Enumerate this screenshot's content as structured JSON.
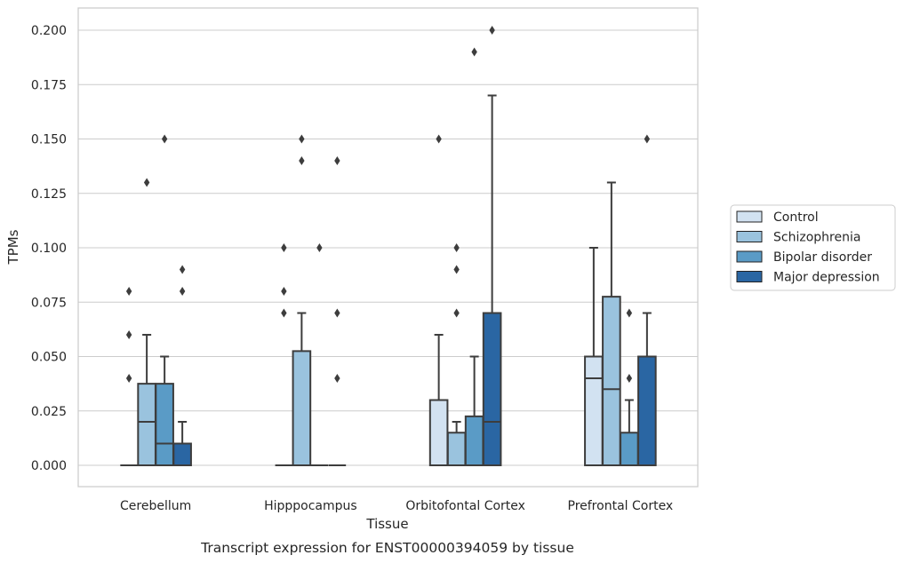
{
  "chart_data": {
    "type": "box",
    "title": "",
    "caption": "Transcript expression for ENST00000394059 by tissue",
    "xlabel": "Tissue",
    "ylabel": "TPMs",
    "ylim": [
      -0.01,
      0.21
    ],
    "yticks": [
      0.0,
      0.025,
      0.05,
      0.075,
      0.1,
      0.125,
      0.15,
      0.175,
      0.2
    ],
    "ytick_labels": [
      "0.000",
      "0.025",
      "0.050",
      "0.075",
      "0.100",
      "0.125",
      "0.150",
      "0.175",
      "0.200"
    ],
    "grid": true,
    "legend_position": "right",
    "categories": [
      "Cerebellum",
      "Hipppocampus",
      "Orbitofontal Cortex",
      "Prefrontal Cortex"
    ],
    "series": [
      {
        "name": "Control",
        "color": "#d2e2f1",
        "boxes": [
          {
            "q1": 0.0,
            "median": 0.0,
            "q3": 0.0,
            "whisker_low": 0.0,
            "whisker_high": 0.0,
            "outliers": [
              0.04,
              0.06,
              0.08
            ]
          },
          {
            "q1": 0.0,
            "median": 0.0,
            "q3": 0.0,
            "whisker_low": 0.0,
            "whisker_high": 0.0,
            "outliers": [
              0.07,
              0.08,
              0.1
            ]
          },
          {
            "q1": 0.0,
            "median": 0.0,
            "q3": 0.03,
            "whisker_low": 0.0,
            "whisker_high": 0.06,
            "outliers": [
              0.15
            ]
          },
          {
            "q1": 0.0,
            "median": 0.04,
            "q3": 0.05,
            "whisker_low": 0.0,
            "whisker_high": 0.1,
            "outliers": []
          }
        ]
      },
      {
        "name": "Schizophrenia",
        "color": "#9ac3de",
        "boxes": [
          {
            "q1": 0.0,
            "median": 0.02,
            "q3": 0.0375,
            "whisker_low": 0.0,
            "whisker_high": 0.06,
            "outliers": [
              0.13
            ]
          },
          {
            "q1": 0.0,
            "median": 0.0,
            "q3": 0.0525,
            "whisker_low": 0.0,
            "whisker_high": 0.07,
            "outliers": [
              0.14,
              0.15
            ]
          },
          {
            "q1": 0.0,
            "median": 0.0,
            "q3": 0.015,
            "whisker_low": 0.0,
            "whisker_high": 0.02,
            "outliers": [
              0.07,
              0.09,
              0.1
            ]
          },
          {
            "q1": 0.0,
            "median": 0.035,
            "q3": 0.0775,
            "whisker_low": 0.0,
            "whisker_high": 0.13,
            "outliers": []
          }
        ]
      },
      {
        "name": "Bipolar disorder",
        "color": "#5a9bc6",
        "boxes": [
          {
            "q1": 0.0,
            "median": 0.01,
            "q3": 0.0375,
            "whisker_low": 0.0,
            "whisker_high": 0.05,
            "outliers": [
              0.15
            ]
          },
          {
            "q1": 0.0,
            "median": 0.0,
            "q3": 0.0,
            "whisker_low": 0.0,
            "whisker_high": 0.0,
            "outliers": [
              0.1
            ]
          },
          {
            "q1": 0.0,
            "median": 0.0,
            "q3": 0.0225,
            "whisker_low": 0.0,
            "whisker_high": 0.05,
            "outliers": [
              0.19
            ]
          },
          {
            "q1": 0.0,
            "median": 0.0,
            "q3": 0.015,
            "whisker_low": 0.0,
            "whisker_high": 0.03,
            "outliers": [
              0.04,
              0.07
            ]
          }
        ]
      },
      {
        "name": "Major depression",
        "color": "#2a66a3",
        "boxes": [
          {
            "q1": 0.0,
            "median": 0.0,
            "q3": 0.01,
            "whisker_low": 0.0,
            "whisker_high": 0.02,
            "outliers": [
              0.08,
              0.09
            ]
          },
          {
            "q1": 0.0,
            "median": 0.0,
            "q3": 0.0,
            "whisker_low": 0.0,
            "whisker_high": 0.0,
            "outliers": [
              0.04,
              0.07,
              0.14
            ]
          },
          {
            "q1": 0.0,
            "median": 0.02,
            "q3": 0.07,
            "whisker_low": 0.0,
            "whisker_high": 0.17,
            "outliers": [
              0.2
            ]
          },
          {
            "q1": 0.0,
            "median": 0.0,
            "q3": 0.05,
            "whisker_low": 0.0,
            "whisker_high": 0.07,
            "outliers": [
              0.15
            ]
          }
        ]
      }
    ]
  }
}
